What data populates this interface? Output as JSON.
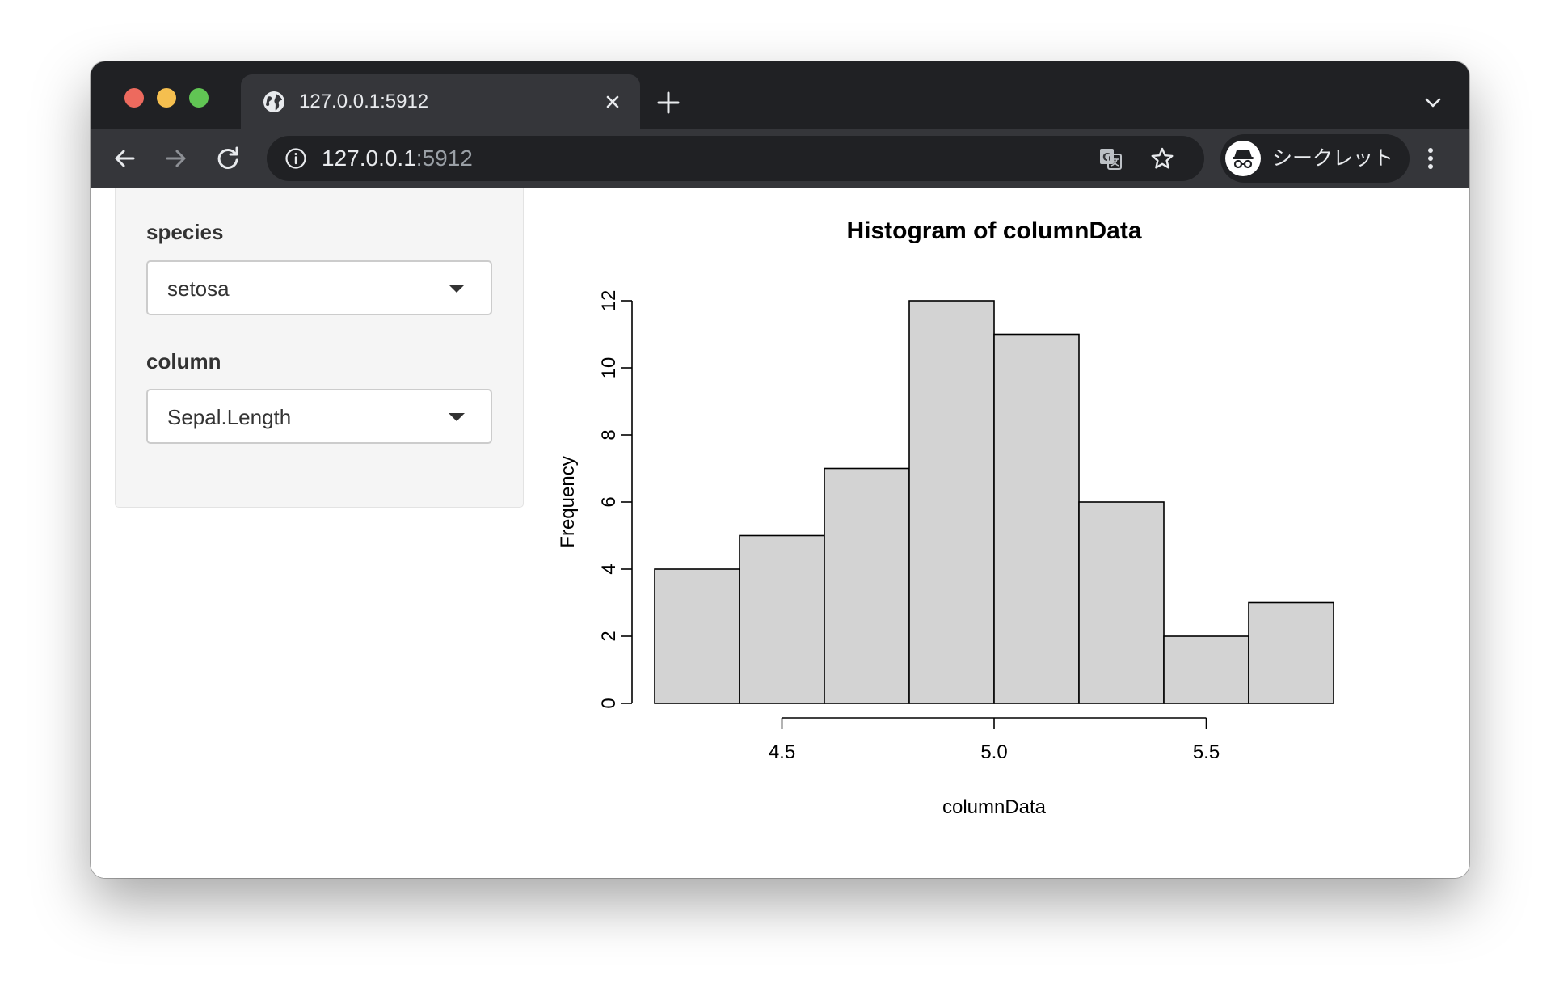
{
  "browser": {
    "tab_title": "127.0.0.1:5912",
    "url_host": "127.0.0.1",
    "url_port": ":5912",
    "profile_label": "シークレット"
  },
  "sidebar": {
    "species_label": "species",
    "species_value": "setosa",
    "column_label": "column",
    "column_value": "Sepal.Length"
  },
  "chart_data": {
    "type": "bar",
    "title": "Histogram of columnData",
    "xlabel": "columnData",
    "ylabel": "Frequency",
    "bins": [
      {
        "from": 4.2,
        "to": 4.4,
        "count": 4
      },
      {
        "from": 4.4,
        "to": 4.6,
        "count": 5
      },
      {
        "from": 4.6,
        "to": 4.8,
        "count": 7
      },
      {
        "from": 4.8,
        "to": 5.0,
        "count": 12
      },
      {
        "from": 5.0,
        "to": 5.2,
        "count": 11
      },
      {
        "from": 5.2,
        "to": 5.4,
        "count": 6
      },
      {
        "from": 5.4,
        "to": 5.6,
        "count": 2
      },
      {
        "from": 5.6,
        "to": 5.8,
        "count": 3
      }
    ],
    "xticks": [
      {
        "value": 4.5,
        "label": "4.5"
      },
      {
        "value": 5.0,
        "label": "5.0"
      },
      {
        "value": 5.5,
        "label": "5.5"
      }
    ],
    "yticks": [
      {
        "value": 0,
        "label": "0"
      },
      {
        "value": 2,
        "label": "2"
      },
      {
        "value": 4,
        "label": "4"
      },
      {
        "value": 6,
        "label": "6"
      },
      {
        "value": 8,
        "label": "8"
      },
      {
        "value": 10,
        "label": "10"
      },
      {
        "value": 12,
        "label": "12"
      }
    ],
    "xlim": [
      4.2,
      5.8
    ],
    "ylim": [
      0,
      12
    ],
    "bar_color": "#d3d3d3",
    "grid": false
  }
}
